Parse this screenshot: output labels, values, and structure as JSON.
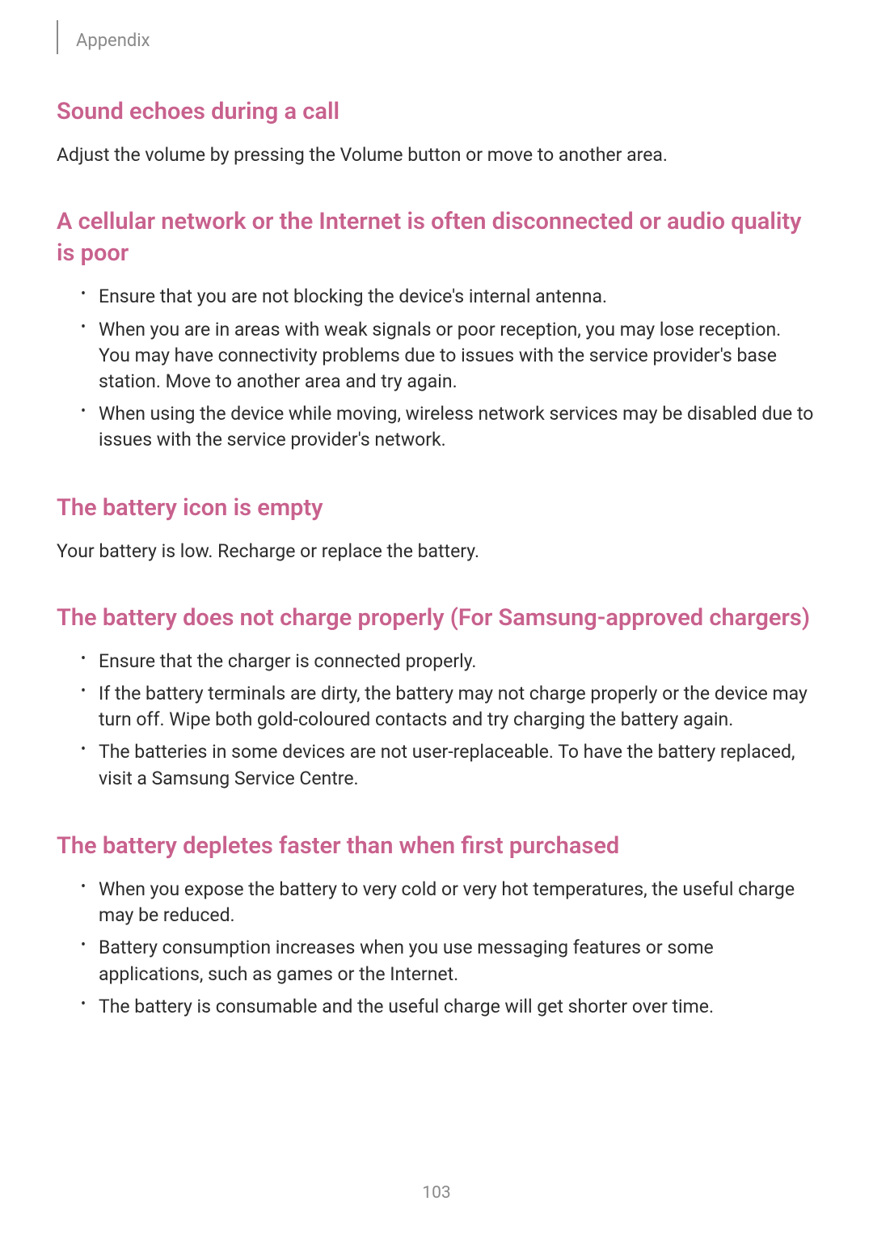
{
  "header": {
    "label": "Appendix"
  },
  "sections": [
    {
      "heading": "Sound echoes during a call",
      "body": "Adjust the volume by pressing the Volume button or move to another area."
    },
    {
      "heading": "A cellular network or the Internet is often disconnected or audio quality is poor",
      "bullets": [
        "Ensure that you are not blocking the device's internal antenna.",
        "When you are in areas with weak signals or poor reception, you may lose reception. You may have connectivity problems due to issues with the service provider's base station. Move to another area and try again.",
        "When using the device while moving, wireless network services may be disabled due to issues with the service provider's network."
      ]
    },
    {
      "heading": "The battery icon is empty",
      "body": "Your battery is low. Recharge or replace the battery."
    },
    {
      "heading": "The battery does not charge properly (For Samsung-approved chargers)",
      "bullets": [
        "Ensure that the charger is connected properly.",
        "If the battery terminals are dirty, the battery may not charge properly or the device may turn off. Wipe both gold-coloured contacts and try charging the battery again.",
        "The batteries in some devices are not user-replaceable. To have the battery replaced, visit a Samsung Service Centre."
      ]
    },
    {
      "heading": "The battery depletes faster than when first purchased",
      "bullets": [
        "When you expose the battery to very cold or very hot temperatures, the useful charge may be reduced.",
        "Battery consumption increases when you use messaging features or some applications, such as games or the Internet.",
        "The battery is consumable and the useful charge will get shorter over time."
      ]
    }
  ],
  "pageNumber": "103",
  "styling": {
    "heading_color": "#c8618d",
    "body_color": "#2c2c2c",
    "header_color": "#8a8a8a",
    "background_color": "#ffffff",
    "heading_fontsize": 29,
    "body_fontsize": 23,
    "header_fontsize": 22
  }
}
